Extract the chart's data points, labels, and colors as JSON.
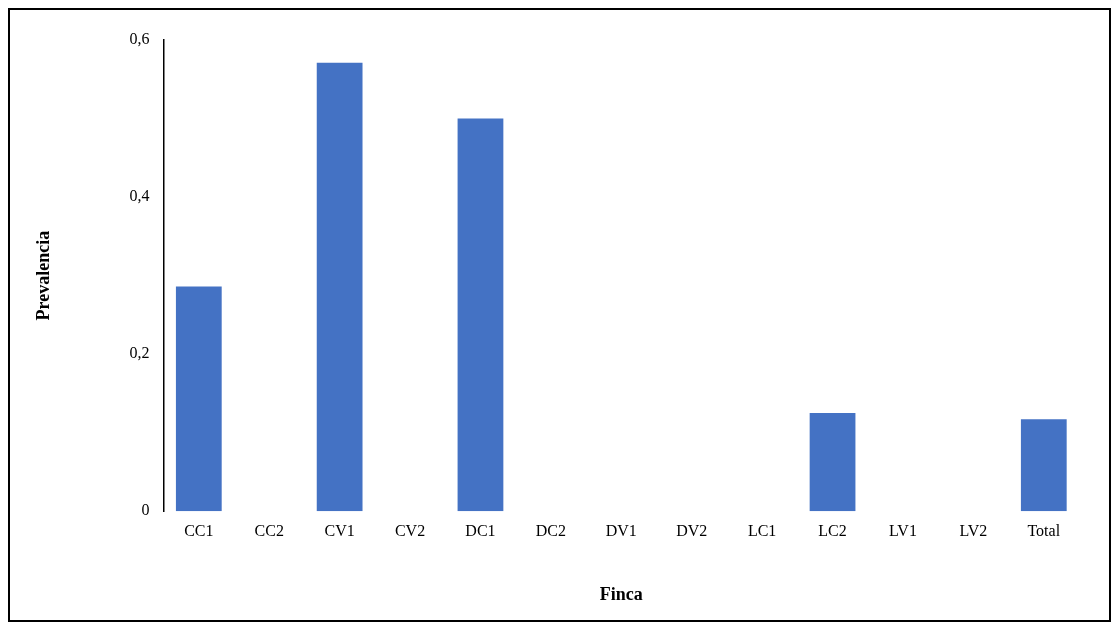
{
  "chart_data": {
    "type": "bar",
    "xlabel": "Finca",
    "ylabel": "Prevalencia",
    "categories": [
      "CC1",
      "CC2",
      "CV1",
      "CV2",
      "DC1",
      "DC2",
      "DV1",
      "DV2",
      "LC1",
      "LC2",
      "LV1",
      "LV2",
      "Total"
    ],
    "values": [
      0.286,
      0,
      0.571,
      0,
      0.5,
      0,
      0,
      0,
      0,
      0.125,
      0,
      0,
      0.117
    ],
    "color": "#4472c4",
    "ylim": [
      0,
      0.6
    ],
    "yticks": [
      0,
      {
        "value": 0.2,
        "label": "0,2"
      },
      {
        "value": 0.4,
        "label": "0,4"
      },
      {
        "value": 0.6,
        "label": "0,6"
      }
    ],
    "grid": false,
    "legend": false
  }
}
